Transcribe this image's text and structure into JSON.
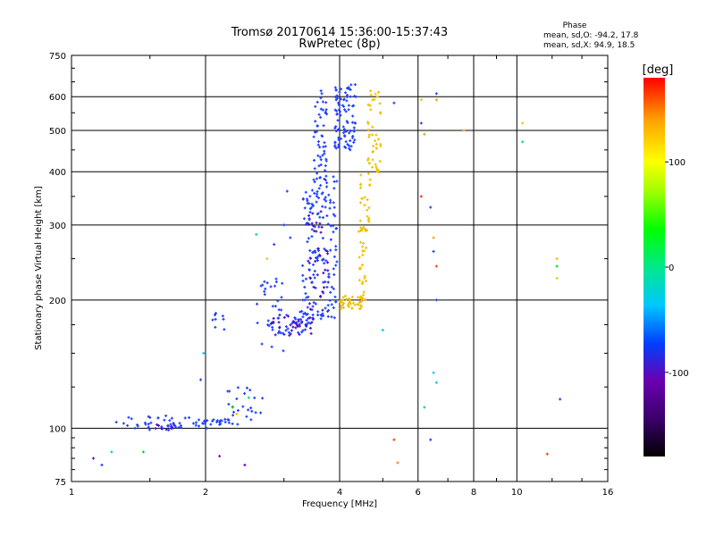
{
  "chart_data": {
    "type": "scatter",
    "title": "Tromsø 20170614 15:36:00-15:37:43",
    "subtitle": "RwPretec (8p)",
    "xlabel": "Frequency [MHz]",
    "ylabel": "Stationary phase Virtual Height [km]",
    "x_scale": "log",
    "y_scale": "log",
    "xlim": [
      1,
      16
    ],
    "ylim": [
      75,
      750
    ],
    "x_ticks": [
      1,
      2,
      4,
      6,
      8,
      10,
      16
    ],
    "y_ticks": [
      75,
      100,
      200,
      300,
      400,
      500,
      600,
      750
    ],
    "grid": true,
    "phase_box": {
      "title": "Phase",
      "line_o": "mean, sd,O: -94.2, 17.8",
      "line_x": "mean, sd,X:  94.9, 18.5"
    },
    "colorbar": {
      "label": "[deg]",
      "range": [
        -180,
        180
      ],
      "ticks": [
        -100,
        0,
        100
      ],
      "colormap": [
        "#000000",
        "#3b006b",
        "#6a00b0",
        "#0040ff",
        "#00c8ff",
        "#00e88a",
        "#00ff00",
        "#a0ff00",
        "#ffff00",
        "#ffa000",
        "#ff0000"
      ]
    },
    "series": [
      {
        "name": "O-mode trace (blue, ~-100 deg)",
        "color": "#1f3fff",
        "segments": [
          {
            "x": [
              1.25,
              1.9
            ],
            "y": [
              99,
              107
            ],
            "n": 40
          },
          {
            "x": [
              1.9,
              2.3
            ],
            "y": [
              100,
              105
            ],
            "n": 25
          },
          {
            "x": [
              2.2,
              2.7
            ],
            "y": [
              102,
              125
            ],
            "n": 25
          },
          {
            "x": [
              2.05,
              2.25
            ],
            "y": [
              170,
              190
            ],
            "n": 8
          },
          {
            "x": [
              2.6,
              3.0
            ],
            "y": [
              150,
              225
            ],
            "n": 30
          },
          {
            "x": [
              2.9,
              3.5
            ],
            "y": [
              165,
              190
            ],
            "n": 40
          },
          {
            "x": [
              3.3,
              3.95
            ],
            "y": [
              180,
              390
            ],
            "n": 150
          },
          {
            "x": [
              3.5,
              3.75
            ],
            "y": [
              380,
              630
            ],
            "n": 50
          },
          {
            "x": [
              3.9,
              4.35
            ],
            "y": [
              450,
              650
            ],
            "n": 90
          },
          {
            "x": [
              3.3,
              3.6
            ],
            "y": [
              300,
              360
            ],
            "n": 10
          }
        ]
      },
      {
        "name": "O-mode trace low-phase (purple)",
        "color": "#4a10c0",
        "segments": [
          {
            "x": [
              2.8,
              3.5
            ],
            "y": [
              165,
              185
            ],
            "n": 30
          },
          {
            "x": [
              3.4,
              3.8
            ],
            "y": [
              180,
              330
            ],
            "n": 35
          },
          {
            "x": [
              1.5,
              1.7
            ],
            "y": [
              99,
              103
            ],
            "n": 8
          }
        ]
      },
      {
        "name": "X-mode trace (yellow, ~+95 deg)",
        "color": "#f0c000",
        "segments": [
          {
            "x": [
              4.0,
              4.5
            ],
            "y": [
              190,
              205
            ],
            "n": 40
          },
          {
            "x": [
              4.4,
              4.6
            ],
            "y": [
              200,
              300
            ],
            "n": 30
          },
          {
            "x": [
              4.45,
              4.7
            ],
            "y": [
              290,
              400
            ],
            "n": 25
          },
          {
            "x": [
              4.6,
              4.95
            ],
            "y": [
              390,
              620
            ],
            "n": 45
          }
        ]
      },
      {
        "name": "Scattered echoes (mixed phase)",
        "color": "#00b8ff",
        "points": [
          {
            "x": 6.6,
            "y": 610,
            "c": "#1f3fff"
          },
          {
            "x": 6.6,
            "y": 590,
            "c": "#f0a000"
          },
          {
            "x": 6.1,
            "y": 590,
            "c": "#f0c000"
          },
          {
            "x": 6.1,
            "y": 520,
            "c": "#1f3fff"
          },
          {
            "x": 6.2,
            "y": 490,
            "c": "#f0a000"
          },
          {
            "x": 6.4,
            "y": 330,
            "c": "#1f3fff"
          },
          {
            "x": 6.1,
            "y": 350,
            "c": "#ff3000"
          },
          {
            "x": 6.5,
            "y": 280,
            "c": "#ffa000"
          },
          {
            "x": 6.5,
            "y": 260,
            "c": "#1f3fff"
          },
          {
            "x": 6.6,
            "y": 240,
            "c": "#ff4000"
          },
          {
            "x": 6.6,
            "y": 200,
            "c": "#1f3fff"
          },
          {
            "x": 6.5,
            "y": 135,
            "c": "#00c8ff"
          },
          {
            "x": 6.6,
            "y": 128,
            "c": "#00c8ff"
          },
          {
            "x": 6.2,
            "y": 112,
            "c": "#00d0a0"
          },
          {
            "x": 6.4,
            "y": 94,
            "c": "#1f3fff"
          },
          {
            "x": 5.3,
            "y": 94,
            "c": "#ff4000"
          },
          {
            "x": 5.4,
            "y": 83,
            "c": "#ff8000"
          },
          {
            "x": 7.6,
            "y": 500,
            "c": "#f0a000"
          },
          {
            "x": 10.3,
            "y": 470,
            "c": "#00e070"
          },
          {
            "x": 12.3,
            "y": 250,
            "c": "#f0c000"
          },
          {
            "x": 12.3,
            "y": 240,
            "c": "#00e000"
          },
          {
            "x": 12.3,
            "y": 225,
            "c": "#f0c000"
          },
          {
            "x": 12.5,
            "y": 117,
            "c": "#1f3fff"
          },
          {
            "x": 11.7,
            "y": 87,
            "c": "#ff4000"
          },
          {
            "x": 10.3,
            "y": 520,
            "c": "#f0c000"
          },
          {
            "x": 5.3,
            "y": 580,
            "c": "#1f3fff"
          },
          {
            "x": 5.0,
            "y": 170,
            "c": "#00c8ff"
          },
          {
            "x": 2.45,
            "y": 82,
            "c": "#7000c0"
          },
          {
            "x": 2.15,
            "y": 86,
            "c": "#7000c0"
          },
          {
            "x": 1.12,
            "y": 85,
            "c": "#7000c0"
          },
          {
            "x": 1.17,
            "y": 82,
            "c": "#1f3fff"
          },
          {
            "x": 1.23,
            "y": 88,
            "c": "#00c8ff"
          },
          {
            "x": 1.45,
            "y": 88,
            "c": "#00e000"
          },
          {
            "x": 1.98,
            "y": 150,
            "c": "#00c8ff"
          },
          {
            "x": 1.95,
            "y": 130,
            "c": "#1f3fff"
          },
          {
            "x": 2.85,
            "y": 270,
            "c": "#1f3fff"
          },
          {
            "x": 3.05,
            "y": 360,
            "c": "#1f3fff"
          },
          {
            "x": 2.6,
            "y": 285,
            "c": "#00e070"
          },
          {
            "x": 2.75,
            "y": 250,
            "c": "#f0c000"
          },
          {
            "x": 2.3,
            "y": 112,
            "c": "#00e000"
          },
          {
            "x": 2.35,
            "y": 108,
            "c": "#f0c000"
          },
          {
            "x": 2.5,
            "y": 118,
            "c": "#00e070"
          },
          {
            "x": 3.1,
            "y": 280,
            "c": "#1f3fff"
          },
          {
            "x": 3.0,
            "y": 300,
            "c": "#1f3fff"
          }
        ]
      }
    ]
  }
}
